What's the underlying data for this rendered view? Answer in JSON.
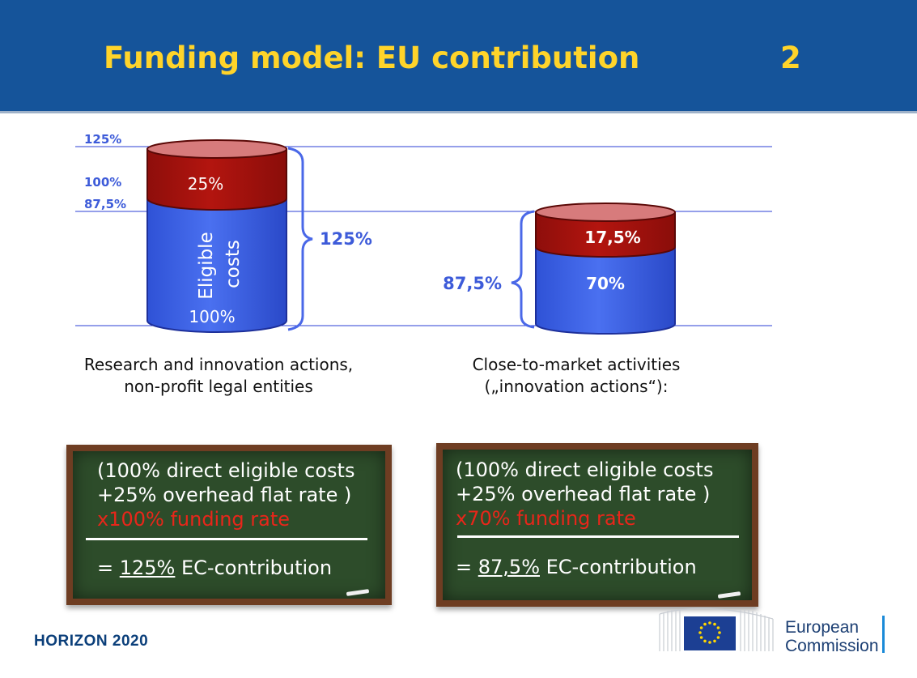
{
  "header": {
    "title": "Funding model: EU contribution",
    "page_number": "2"
  },
  "diagram": {
    "axis_labels": [
      "125%",
      "100%",
      "87,5%"
    ],
    "left_cylinder": {
      "top_label": "25%",
      "body_label_line1": "Eligible",
      "body_label_line2": "costs",
      "bottom_label": "100%",
      "brace_label": "125%"
    },
    "right_cylinder": {
      "top_label": "17,5%",
      "bottom_label": "70%",
      "brace_label": "87,5%"
    },
    "colors": {
      "blue": "#3d62e6",
      "red": "#a8120f",
      "line": "#2b3fd6"
    }
  },
  "captions": {
    "left_line1": "Research and innovation actions,",
    "left_line2": "non-profit legal entities",
    "right_line1": "Close-to-market activities",
    "right_line2": "(„innovation actions“):"
  },
  "boards": {
    "left": {
      "line1": "(100% direct eligible costs",
      "line2": "+25%  overhead flat rate )",
      "line3": "x100% funding rate",
      "result_prefix": "= ",
      "result_value": "125%",
      "result_suffix": " EC-contribution"
    },
    "right": {
      "line1": "(100% direct eligible costs",
      "line2": "+25% overhead flat rate )",
      "line3": "x70% funding rate",
      "result_prefix": "= ",
      "result_value": "87,5%",
      "result_suffix": " EC-contribution"
    }
  },
  "footer": {
    "brand": "HORIZON 2020",
    "ec_line1": "European",
    "ec_line2": "Commission"
  }
}
